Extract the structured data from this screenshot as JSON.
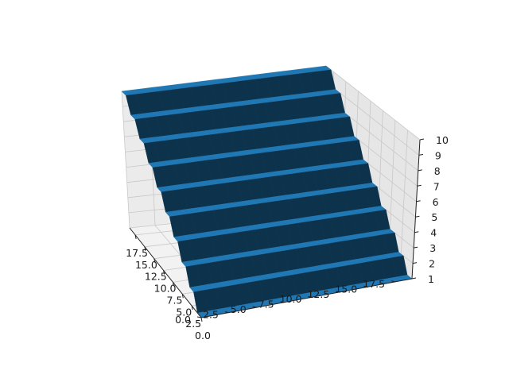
{
  "chart_data": {
    "type": "surface3d",
    "title": "",
    "x_ticks": [
      "0.0",
      "2.5",
      "5.0",
      "7.5",
      "10.0",
      "12.5",
      "15.0",
      "17.5"
    ],
    "y_ticks": [
      "0.0",
      "2.5",
      "5.0",
      "7.5",
      "10.0",
      "12.5",
      "15.0",
      "17.5"
    ],
    "z_ticks": [
      "1",
      "2",
      "3",
      "4",
      "5",
      "6",
      "7",
      "8",
      "9",
      "10"
    ],
    "x_range": [
      0,
      19
    ],
    "y_range": [
      0,
      19
    ],
    "zlim": [
      1,
      10
    ],
    "z_rows": [
      1,
      1,
      2,
      2,
      3,
      3,
      4,
      4,
      5,
      5,
      6,
      6,
      7,
      7,
      8,
      8,
      9,
      9,
      10,
      10
    ],
    "surface_color": "#1f77b4",
    "grid": true
  }
}
